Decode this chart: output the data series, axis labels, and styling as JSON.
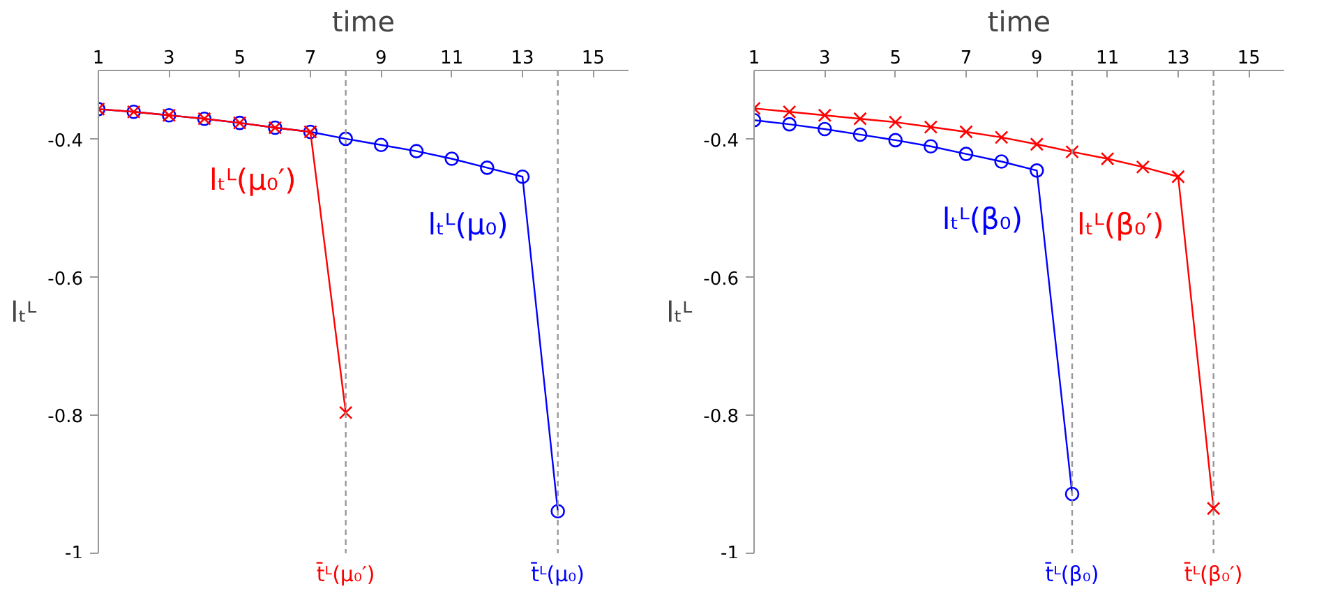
{
  "chart_data": [
    {
      "type": "line",
      "xlabel": "time",
      "ylabel": "lₜᴸ",
      "x": [
        1,
        2,
        3,
        4,
        5,
        6,
        7,
        8,
        9,
        10,
        11,
        12,
        13,
        14
      ],
      "xlim": [
        1,
        16
      ],
      "xticks": [
        1,
        3,
        5,
        7,
        9,
        11,
        13,
        15
      ],
      "ylim": [
        -1,
        -0.3
      ],
      "yticks": [
        -0.4,
        -0.6,
        -0.8,
        -1
      ],
      "grid": false,
      "series": [
        {
          "name": "lₜᴸ(μ₀)",
          "color": "#0000ff",
          "marker": "circle",
          "values": [
            -0.356,
            -0.36,
            -0.365,
            -0.37,
            -0.376,
            -0.383,
            -0.389,
            -0.399,
            -0.408,
            -0.417,
            -0.428,
            -0.441,
            -0.454,
            -0.939
          ]
        },
        {
          "name": "lₜᴸ(μ₀′)",
          "color": "#ff0000",
          "marker": "cross",
          "values": [
            -0.356,
            -0.36,
            -0.365,
            -0.37,
            -0.376,
            -0.383,
            -0.389,
            -0.796,
            null,
            null,
            null,
            null,
            null,
            null
          ]
        }
      ],
      "ref_lines": [
        {
          "axis": "x",
          "value": 8,
          "label": "t̄ᴸ(μ₀′)",
          "color": "#999999",
          "line_style": "dashed"
        },
        {
          "axis": "x",
          "value": 14,
          "label": "t̄ᴸ(μ₀)",
          "color": "#999999",
          "line_style": "dashed"
        }
      ]
    },
    {
      "type": "line",
      "xlabel": "time",
      "ylabel": "lₜᴸ",
      "x": [
        1,
        2,
        3,
        4,
        5,
        6,
        7,
        8,
        9,
        10,
        11,
        12,
        13,
        14
      ],
      "xlim": [
        1,
        16
      ],
      "xticks": [
        1,
        3,
        5,
        7,
        9,
        11,
        13,
        15
      ],
      "ylim": [
        -1,
        -0.3
      ],
      "yticks": [
        -0.4,
        -0.6,
        -0.8,
        -1
      ],
      "grid": false,
      "series": [
        {
          "name": "lₜᴸ(β₀)",
          "color": "#0000ff",
          "marker": "circle",
          "values": [
            -0.372,
            -0.378,
            -0.385,
            -0.393,
            -0.401,
            -0.41,
            -0.421,
            -0.432,
            -0.445,
            -0.914,
            null,
            null,
            null,
            null
          ]
        },
        {
          "name": "lₜᴸ(β₀′)",
          "color": "#ff0000",
          "marker": "cross",
          "values": [
            -0.355,
            -0.36,
            -0.365,
            -0.37,
            -0.375,
            -0.382,
            -0.389,
            -0.397,
            -0.407,
            -0.418,
            -0.428,
            -0.44,
            -0.454,
            -0.935
          ]
        }
      ],
      "ref_lines": [
        {
          "axis": "x",
          "value": 10,
          "label": "t̄ᴸ(β₀)",
          "color": "#999999",
          "line_style": "dashed"
        },
        {
          "axis": "x",
          "value": 14,
          "label": "t̄ᴸ(β₀′)",
          "color": "#999999",
          "line_style": "dashed"
        }
      ]
    }
  ]
}
